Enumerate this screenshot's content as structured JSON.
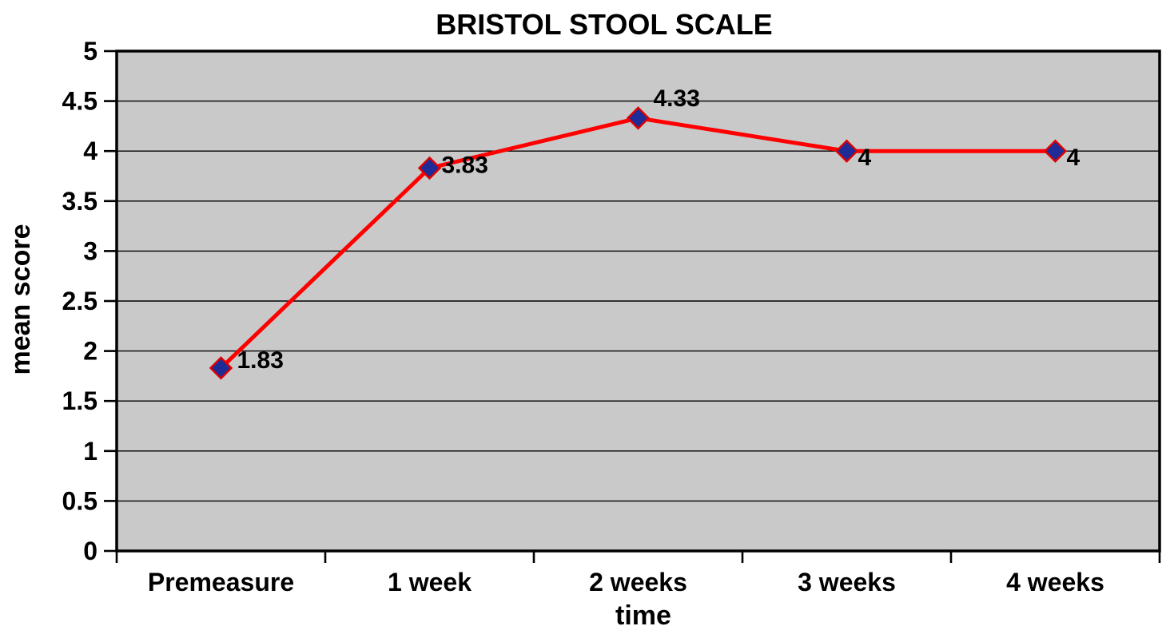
{
  "chart_data": {
    "type": "line",
    "title": "BRISTOL STOOL SCALE",
    "xlabel": "time",
    "ylabel": "mean score",
    "categories": [
      "Premeasure",
      "1 week",
      "2 weeks",
      "3 weeks",
      "4 weeks"
    ],
    "series": [
      {
        "name": "mean score",
        "values": [
          1.83,
          3.83,
          4.33,
          4,
          4
        ]
      }
    ],
    "point_labels": [
      "1.83",
      "3.83",
      "4.33",
      "4",
      "4"
    ],
    "ylim": [
      0,
      5
    ],
    "yticks": [
      0,
      0.5,
      1,
      1.5,
      2,
      2.5,
      3,
      3.5,
      4,
      4.5,
      5
    ],
    "ytick_labels": [
      "0",
      "0.5",
      "1",
      "1.5",
      "2",
      "2.5",
      "3",
      "3.5",
      "4",
      "4.5",
      "5"
    ],
    "grid": "horizontal-major",
    "legend": "none",
    "colors": {
      "line": "#FF0000",
      "marker_fill": "#1F2B96",
      "marker_border": "#E00000",
      "plot_background": "#C9C9C9",
      "gridline": "#000000",
      "axis": "#000000",
      "text": "#000000"
    }
  }
}
